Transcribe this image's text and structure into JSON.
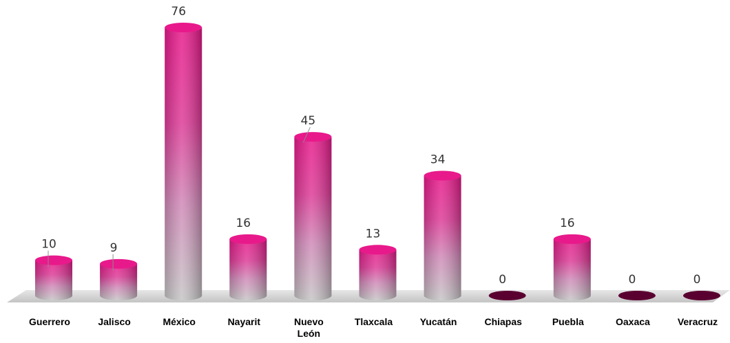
{
  "chart_data": {
    "type": "bar",
    "style": "3d-cylinder",
    "categories": [
      "Guerrero",
      "Jalisco",
      "México",
      "Nayarit",
      "Nuevo León",
      "Tlaxcala",
      "Yucatán",
      "Chiapas",
      "Puebla",
      "Oaxaca",
      "Veracruz"
    ],
    "values": [
      10,
      9,
      76,
      16,
      45,
      13,
      34,
      0,
      16,
      0,
      0
    ],
    "data_labels": [
      "10",
      "9",
      "76",
      "16",
      "45",
      "13",
      "34",
      "0",
      "16",
      "0",
      "0"
    ],
    "title": "",
    "xlabel": "",
    "ylabel": "",
    "ylim": [
      0,
      76
    ],
    "grid": false,
    "legend": "none",
    "colors": {
      "bar_top": "#e8198b",
      "bar_mid": "#d45aa6",
      "bar_bottom": "#c8c8c8",
      "zero_disc": "#5a0030",
      "floor": "#d9d9d9",
      "label_text": "#333333"
    }
  }
}
